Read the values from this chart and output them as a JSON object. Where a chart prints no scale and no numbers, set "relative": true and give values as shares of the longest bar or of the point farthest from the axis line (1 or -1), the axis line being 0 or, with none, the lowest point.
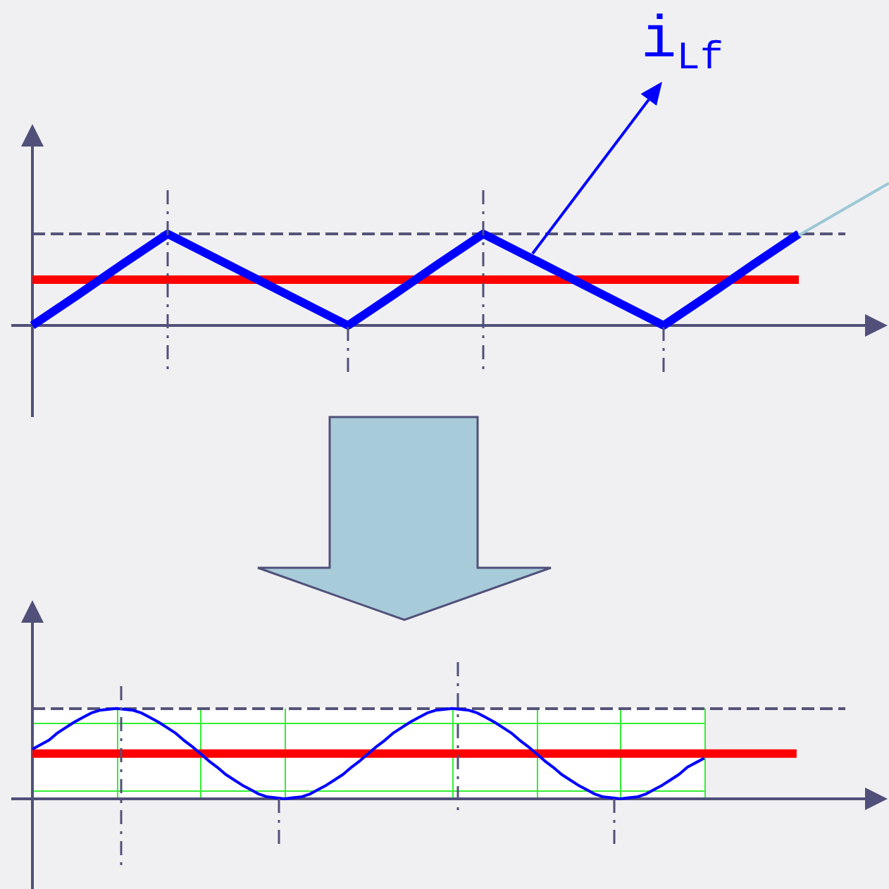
{
  "chart_data": [
    {
      "type": "line",
      "relative": true,
      "categories": [
        null,
        null,
        null,
        null,
        null,
        null,
        null,
        null,
        null,
        null,
        null,
        null,
        null,
        null,
        null,
        null,
        null,
        null,
        null,
        null
      ],
      "series": [
        {
          "name": "i$_{Lf}$",
          "color": "#0000ff",
          "values": [
            0,
            0.33,
            0.67,
            1,
            0.75,
            0.5,
            0.25,
            0,
            0.33,
            0.67,
            1,
            0.75,
            0.5,
            0.25,
            0,
            0.33,
            0.67,
            1,
            null,
            null
          ]
        },
        {
          "color": "#ff0000",
          "values": [
            0.5,
            0.5,
            0.5,
            0.5,
            0.5,
            0.5,
            0.5,
            0.5,
            0.5,
            0.5,
            0.5,
            0.5,
            0.5,
            0.5,
            0.5,
            0.5,
            0.5,
            0.5,
            null,
            null
          ]
        }
      ],
      "ref_lines": [
        {
          "axis": "y",
          "value": 1,
          "line_style": "dashed",
          "color": "#55557a"
        }
      ]
    },
    {
      "type": "line",
      "relative": true,
      "grid": "x",
      "categories": [
        null,
        null,
        null,
        null,
        null,
        null,
        null,
        null,
        null,
        null,
        null,
        null,
        null,
        null,
        null,
        null,
        null,
        null,
        null,
        null,
        null,
        null,
        null,
        null,
        null,
        null,
        null,
        null,
        null,
        null,
        null,
        null,
        null,
        null,
        null,
        null,
        null,
        null,
        null,
        null,
        null,
        null,
        null,
        null,
        null,
        null,
        null,
        null,
        null,
        null,
        null,
        null,
        null,
        null,
        null,
        null,
        null,
        null,
        null,
        null,
        null,
        null,
        null,
        null,
        null,
        null,
        null,
        null,
        null,
        null,
        null,
        null,
        null,
        null,
        null,
        null,
        null,
        null,
        null,
        null,
        null,
        null,
        null,
        null,
        null,
        null,
        null,
        null,
        null,
        null,
        null,
        null,
        null,
        null,
        null,
        null,
        null,
        null,
        null,
        null,
        null,
        null,
        null
      ],
      "series": [
        {
          "color": "#0000ff",
          "values": [
            0.55,
            0.6,
            0.65,
            0.73,
            0.79,
            0.85,
            0.9,
            0.95,
            0.98,
            0.99,
            1,
            0.99,
            0.98,
            0.95,
            0.9,
            0.85,
            0.79,
            0.73,
            0.65,
            0.58,
            0.5,
            0.42,
            0.35,
            0.27,
            0.21,
            0.15,
            0.1,
            0.05,
            0.02,
            0.01,
            0,
            0.01,
            0.02,
            0.05,
            0.1,
            0.15,
            0.21,
            0.27,
            0.35,
            0.42,
            0.5,
            0.58,
            0.65,
            0.73,
            0.79,
            0.85,
            0.9,
            0.95,
            0.98,
            0.99,
            1,
            0.99,
            0.98,
            0.95,
            0.9,
            0.85,
            0.79,
            0.73,
            0.65,
            0.58,
            0.5,
            0.42,
            0.35,
            0.27,
            0.21,
            0.15,
            0.1,
            0.05,
            0.02,
            0.01,
            0,
            0.01,
            0.02,
            0.05,
            0.1,
            0.15,
            0.21,
            0.27,
            0.35,
            0.4,
            0.45,
            null,
            null,
            null,
            null,
            null,
            null,
            null,
            null,
            null,
            null,
            null,
            null,
            null,
            null,
            null,
            null,
            null,
            null,
            null,
            null,
            null,
            null
          ]
        },
        {
          "color": "#ff0000",
          "values": [
            0.5,
            0.5,
            0.5,
            0.5,
            0.5,
            0.5,
            0.5,
            0.5,
            0.5,
            0.5,
            0.5,
            0.5,
            0.5,
            0.5,
            0.5,
            0.5,
            0.5,
            0.5,
            0.5,
            0.5,
            0.5,
            0.5,
            0.5,
            0.5,
            0.5,
            0.5,
            0.5,
            0.5,
            0.5,
            0.5,
            0.5,
            0.5,
            0.5,
            0.5,
            0.5,
            0.5,
            0.5,
            0.5,
            0.5,
            0.5,
            0.5,
            0.5,
            0.5,
            0.5,
            0.5,
            0.5,
            0.5,
            0.5,
            0.5,
            0.5,
            0.5,
            0.5,
            0.5,
            0.5,
            0.5,
            0.5,
            0.5,
            0.5,
            0.5,
            0.5,
            0.5,
            0.5,
            0.5,
            0.5,
            0.5,
            0.5,
            0.5,
            0.5,
            0.5,
            0.5,
            0.5,
            0.5,
            0.5,
            0.5,
            0.5,
            0.5,
            0.5,
            0.5,
            0.5,
            0.5,
            0.5,
            0.5,
            0.5,
            0.5,
            0.5,
            0.5,
            0.5,
            0.5,
            0.5,
            0.5,
            0.5,
            0.5,
            null,
            null,
            null,
            null,
            null,
            null,
            null,
            null,
            null,
            null,
            null
          ]
        }
      ],
      "ref_lines": [
        {
          "axis": "y",
          "value": 1,
          "line_style": "dashed",
          "color": "#55557a"
        },
        {
          "axis": "y",
          "value": 0.84,
          "color": "#33ee33"
        },
        {
          "axis": "y",
          "value": 0.1,
          "color": "#33ee33"
        }
      ]
    }
  ]
}
